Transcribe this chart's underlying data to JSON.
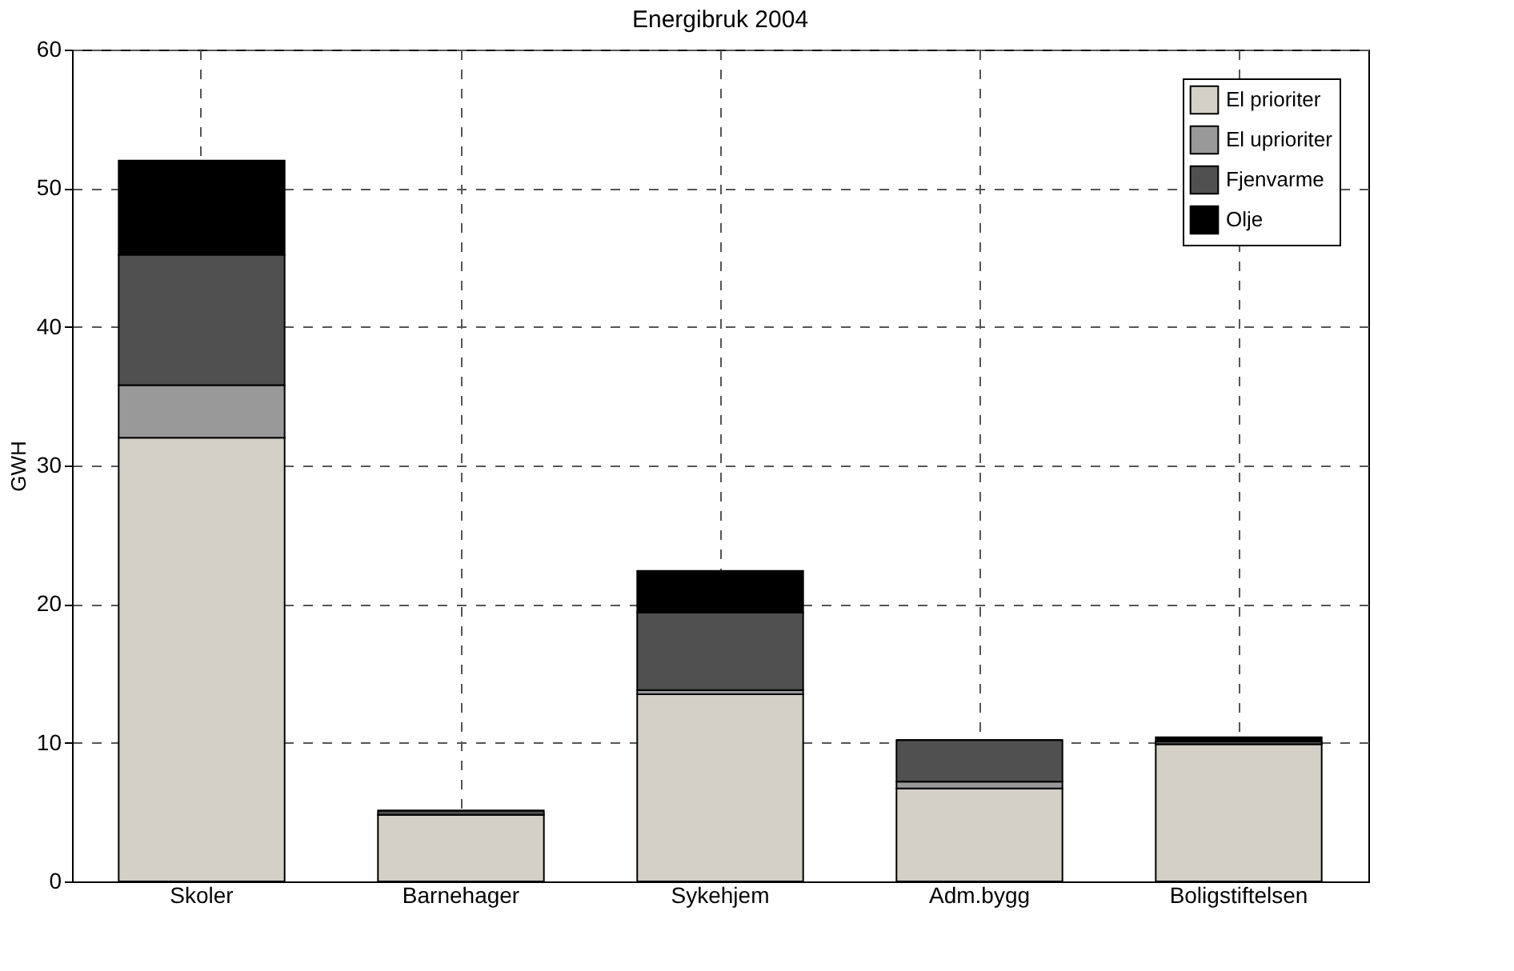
{
  "chart_data": {
    "type": "bar",
    "title": "Energibruk 2004",
    "ylabel": "GWH",
    "categories": [
      "Skoler",
      "Barnehager",
      "Sykehjem",
      "Adm.bygg",
      "Boligstiftelsen"
    ],
    "stacked": true,
    "series": [
      {
        "name": "El prioriter",
        "color": "#d4d0c8",
        "values": [
          32.0,
          4.8,
          13.5,
          6.7,
          9.9
        ]
      },
      {
        "name": "El uprioriter",
        "color": "#999999",
        "values": [
          3.8,
          null,
          0.3,
          0.5,
          null
        ]
      },
      {
        "name": "Fjenvarme",
        "color": "#505050",
        "values": [
          9.4,
          0.3,
          5.6,
          3.0,
          0.2
        ]
      },
      {
        "name": "Olje",
        "color": "#000000",
        "values": [
          6.8,
          0.0,
          3.0,
          0.0,
          0.3
        ]
      }
    ],
    "ylim": [
      0,
      60
    ],
    "yticks": [
      0,
      10,
      20,
      30,
      40,
      50,
      60
    ],
    "grid": true,
    "legend": "top right"
  }
}
